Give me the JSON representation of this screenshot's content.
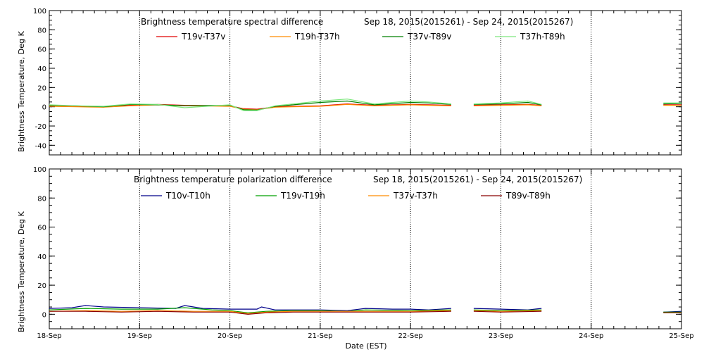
{
  "chart_data": [
    {
      "type": "line",
      "title": "Brightness temperature spectral difference",
      "date_range": "Sep 18, 2015(2015261) - Sep 24, 2015(2015267)",
      "ylabel": "Brightness Temperature, Deg K",
      "ylim": [
        -50,
        100
      ],
      "yticks": [
        -40,
        -20,
        0,
        20,
        40,
        60,
        80,
        100
      ],
      "xlim": [
        0,
        7
      ],
      "grid": "vertical dotted lines at each day",
      "legend_position": "top",
      "series": [
        {
          "name": "T19v-T37v",
          "color": "#e00000",
          "segments": [
            [
              [
                0,
                1
              ],
              [
                0.3,
                0.5
              ],
              [
                0.6,
                0
              ],
              [
                0.9,
                1.5
              ],
              [
                1.2,
                2.5
              ],
              [
                1.5,
                1.5
              ],
              [
                2.0,
                1
              ],
              [
                2.15,
                -2
              ],
              [
                2.3,
                -2.5
              ],
              [
                2.5,
                0
              ],
              [
                2.7,
                0.5
              ],
              [
                3.0,
                1
              ],
              [
                3.3,
                3
              ],
              [
                3.6,
                1.5
              ],
              [
                4.0,
                2.5
              ],
              [
                4.2,
                2
              ],
              [
                4.45,
                1.5
              ]
            ],
            [
              [
                4.7,
                1.5
              ],
              [
                5.0,
                2
              ],
              [
                5.3,
                2.5
              ],
              [
                5.45,
                1.5
              ]
            ],
            [
              [
                6.8,
                2
              ],
              [
                7.0,
                2
              ]
            ]
          ]
        },
        {
          "name": "T19h-T37h",
          "color": "#ff8c00",
          "segments": [
            [
              [
                0,
                0.5
              ],
              [
                0.3,
                0
              ],
              [
                0.6,
                -0.5
              ],
              [
                0.9,
                1
              ],
              [
                1.2,
                2
              ],
              [
                1.5,
                1
              ],
              [
                2.0,
                0.5
              ],
              [
                2.15,
                -2.5
              ],
              [
                2.3,
                -3
              ],
              [
                2.5,
                -0.5
              ],
              [
                2.7,
                0
              ],
              [
                3.0,
                0.5
              ],
              [
                3.3,
                2.5
              ],
              [
                3.6,
                1
              ],
              [
                4.0,
                2
              ],
              [
                4.2,
                1.5
              ],
              [
                4.45,
                1
              ]
            ],
            [
              [
                4.7,
                1
              ],
              [
                5.0,
                1.5
              ],
              [
                5.3,
                2
              ],
              [
                5.45,
                1
              ]
            ],
            [
              [
                6.8,
                1.5
              ],
              [
                7.0,
                1.5
              ]
            ]
          ]
        },
        {
          "name": "T37v-T89v",
          "color": "#008000",
          "segments": [
            [
              [
                0,
                1.5
              ],
              [
                0.3,
                1
              ],
              [
                0.6,
                0
              ],
              [
                0.9,
                2.5
              ],
              [
                1.2,
                2
              ],
              [
                1.5,
                1
              ],
              [
                2.0,
                1.5
              ],
              [
                2.15,
                -3
              ],
              [
                2.3,
                -3.5
              ],
              [
                2.5,
                0.5
              ],
              [
                2.7,
                2
              ],
              [
                3.0,
                4.5
              ],
              [
                3.3,
                6
              ],
              [
                3.6,
                2
              ],
              [
                4.0,
                4.5
              ],
              [
                4.2,
                4
              ],
              [
                4.45,
                2.5
              ]
            ],
            [
              [
                4.7,
                2.5
              ],
              [
                5.0,
                3
              ],
              [
                5.3,
                4.5
              ],
              [
                5.45,
                2
              ]
            ],
            [
              [
                6.8,
                3
              ],
              [
                7.0,
                3.5
              ]
            ]
          ]
        },
        {
          "name": "T37h-T89h",
          "color": "#7ee87e",
          "segments": [
            [
              [
                0,
                2
              ],
              [
                0.3,
                1
              ],
              [
                0.6,
                0.5
              ],
              [
                0.9,
                3
              ],
              [
                1.2,
                2.5
              ],
              [
                1.5,
                -1
              ],
              [
                2.0,
                2
              ],
              [
                2.15,
                -4
              ],
              [
                2.3,
                -4
              ],
              [
                2.5,
                1
              ],
              [
                2.7,
                3
              ],
              [
                3.0,
                6
              ],
              [
                3.3,
                8
              ],
              [
                3.6,
                3
              ],
              [
                4.0,
                6
              ],
              [
                4.2,
                5
              ],
              [
                4.45,
                3
              ]
            ],
            [
              [
                4.7,
                3
              ],
              [
                5.0,
                4
              ],
              [
                5.3,
                6
              ],
              [
                5.45,
                2.5
              ]
            ],
            [
              [
                6.8,
                4
              ],
              [
                7.0,
                4
              ]
            ]
          ]
        }
      ]
    },
    {
      "type": "line",
      "title": "Brightness temperature polarization difference",
      "date_range": "Sep 18, 2015(2015261) - Sep 24, 2015(2015267)",
      "ylabel": "Brightness Temperature, Deg K",
      "xlabel": "Date (EST)",
      "ylim": [
        -10,
        100
      ],
      "yticks": [
        0,
        20,
        40,
        60,
        80,
        100
      ],
      "xlim": [
        0,
        7
      ],
      "xticks": [
        "18-Sep",
        "19-Sep",
        "20-Sep",
        "21-Sep",
        "22-Sep",
        "23-Sep",
        "24-Sep",
        "25-Sep"
      ],
      "grid": "vertical dotted lines at each day",
      "legend_position": "top",
      "series": [
        {
          "name": "T10v-T10h",
          "color": "#00008b",
          "segments": [
            [
              [
                0,
                4
              ],
              [
                0.25,
                4.5
              ],
              [
                0.4,
                6
              ],
              [
                0.6,
                5
              ],
              [
                1.0,
                4.5
              ],
              [
                1.4,
                4
              ],
              [
                1.5,
                6
              ],
              [
                1.7,
                4
              ],
              [
                2.0,
                3.5
              ],
              [
                2.3,
                3.5
              ],
              [
                2.35,
                5
              ],
              [
                2.5,
                3
              ],
              [
                2.8,
                3
              ],
              [
                3.0,
                3
              ],
              [
                3.3,
                2.5
              ],
              [
                3.5,
                4
              ],
              [
                3.8,
                3.5
              ],
              [
                4.0,
                3.5
              ],
              [
                4.2,
                3
              ],
              [
                4.45,
                4
              ]
            ],
            [
              [
                4.7,
                4
              ],
              [
                5.0,
                3.5
              ],
              [
                5.3,
                3
              ],
              [
                5.45,
                4
              ]
            ],
            [
              [
                6.8,
                1.5
              ],
              [
                7.0,
                2
              ]
            ]
          ]
        },
        {
          "name": "T19v-T19h",
          "color": "#00a000",
          "segments": [
            [
              [
                0,
                3
              ],
              [
                0.4,
                4
              ],
              [
                0.8,
                3.5
              ],
              [
                1.2,
                3.5
              ],
              [
                1.5,
                4.5
              ],
              [
                1.8,
                3
              ],
              [
                2.0,
                2.5
              ],
              [
                2.2,
                1
              ],
              [
                2.4,
                2
              ],
              [
                2.7,
                2.5
              ],
              [
                3.0,
                2.5
              ],
              [
                3.3,
                2
              ],
              [
                3.5,
                3
              ],
              [
                4.0,
                2.5
              ],
              [
                4.45,
                3
              ]
            ],
            [
              [
                4.7,
                3
              ],
              [
                5.0,
                2.5
              ],
              [
                5.45,
                3
              ]
            ],
            [
              [
                6.8,
                1.5
              ],
              [
                7.0,
                1.5
              ]
            ]
          ]
        },
        {
          "name": "T37v-T37h",
          "color": "#ff8c00",
          "segments": [
            [
              [
                0,
                2
              ],
              [
                0.4,
                2.5
              ],
              [
                0.8,
                2
              ],
              [
                1.2,
                2.5
              ],
              [
                1.6,
                2
              ],
              [
                2.0,
                2
              ],
              [
                2.2,
                0.5
              ],
              [
                2.4,
                1.5
              ],
              [
                2.7,
                2
              ],
              [
                3.0,
                2
              ],
              [
                3.5,
                2
              ],
              [
                4.0,
                2
              ],
              [
                4.45,
                2.5
              ]
            ],
            [
              [
                4.7,
                2.5
              ],
              [
                5.0,
                2
              ],
              [
                5.45,
                2.5
              ]
            ],
            [
              [
                6.8,
                1
              ],
              [
                7.0,
                1
              ]
            ]
          ]
        },
        {
          "name": "T89v-T89h",
          "color": "#8b0000",
          "segments": [
            [
              [
                0,
                2
              ],
              [
                0.4,
                2
              ],
              [
                0.8,
                1.5
              ],
              [
                1.2,
                2
              ],
              [
                1.6,
                1.5
              ],
              [
                2.0,
                1.5
              ],
              [
                2.2,
                0
              ],
              [
                2.4,
                1
              ],
              [
                2.7,
                1.5
              ],
              [
                3.0,
                1.5
              ],
              [
                3.5,
                1.5
              ],
              [
                4.0,
                1.5
              ],
              [
                4.45,
                2
              ]
            ],
            [
              [
                4.7,
                2
              ],
              [
                5.0,
                1.5
              ],
              [
                5.45,
                2
              ]
            ],
            [
              [
                6.8,
                1
              ],
              [
                7.0,
                1
              ]
            ]
          ]
        }
      ]
    }
  ]
}
